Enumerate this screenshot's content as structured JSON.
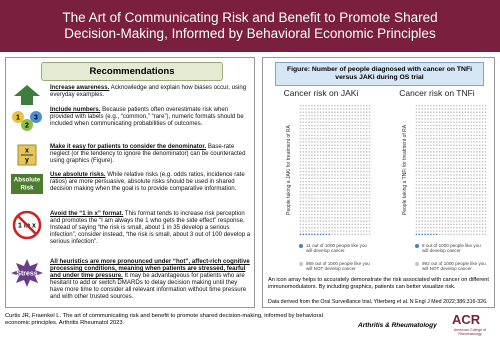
{
  "header": {
    "title": "The Art of Communicating Risk and Benefit to Promote Shared Decision-Making, Informed by Behavioral Economic Principles"
  },
  "recommendations": {
    "heading": "Recommendations",
    "items": [
      {
        "lead": "Increase awareness.",
        "text": "Acknowledge and explain how biases occur, using everyday examples."
      },
      {
        "icon": [
          "1",
          "2",
          "3"
        ],
        "lead": "Include numbers.",
        "text": "Because patients often overestimate risk when provided with labels (e.g., “common,” “rare”), numeric formats should be included when communicating probabilities of outcomes."
      },
      {
        "icon": [
          "x",
          "y"
        ],
        "lead": "Make it easy for patients to consider the denominator.",
        "text": "Base-rate neglect (or the tendency to ignore the denominator) can be counteracted using graphics (Figure)."
      },
      {
        "icon": [
          "Absolute",
          "Risk"
        ],
        "lead": "Use absolute risks.",
        "text": "While relative risks (e.g. odds ratios, incidence rate ratios) are more persuasive, absolute risks should be used in shared decision making when the goal is to provide comparative information."
      },
      {
        "icon": [
          "1 in x"
        ],
        "lead": "Avoid the “1 in x” format.",
        "text": "This format tends to increase risk perception and promotes the “I am always the 1 who gets the side effect” response. Instead of saying “the risk is small, about 1 in 35 develop a serious infection”, consider instead, “the risk is small, about 3 out of 100 develop a serious infection”."
      },
      {
        "icon": [
          "Stress"
        ],
        "lead": "All heuristics are more pronounced under “hot”, affect-rich cognitive processing conditions, meaning when patients are stressed, fearful and under time pressure.",
        "text": "It may be advantageous for patients who are hesitant to add or switch DMARDs to delay decision making until they have more time to consider all relevant information without time pressure and with other trusted sources."
      }
    ]
  },
  "figure": {
    "heading": "Figure: Number of people diagnosed with cancer on TNFi versus JAKi during OS trial",
    "panels": [
      {
        "title": "Cancer risk on JAKi",
        "axis_label": "People taking a JAKi for treatment of RA",
        "affected": 11,
        "affected_label": "out of 1000 people like you will develop cancer",
        "unaffected": 989,
        "unaffected_label": "out of 1000 people like you will NOT develop cancer"
      },
      {
        "title": "Cancer risk on TNFi",
        "axis_label": "People taking a TNFi for treatment of RA",
        "affected": 8,
        "affected_label": "out of 1000 people like you will develop cancer",
        "unaffected": 992,
        "unaffected_label": "out of 1000 people like you will NOT develop cancer"
      }
    ],
    "caption": "An icon array helps to accurately demonstrate the risk associated with cancer on different immunomodulators. By including graphics, patients can better visualize risk.",
    "source": "Data derived from the Oral Surveillance trial, Ytterberg et al. N Engl J Med 2022;386:316-326."
  },
  "footer": {
    "citation": "Curtis JR, Fraenkel L. The art of communicating risk and benefit to promote shared decision-making, informed by behavioral economic principles. Arthritis Rheumatol 2023.",
    "journal": "Arthritis & Rheumatology",
    "logo": "ACR",
    "logo_sub": "American College of Rheumatology"
  }
}
